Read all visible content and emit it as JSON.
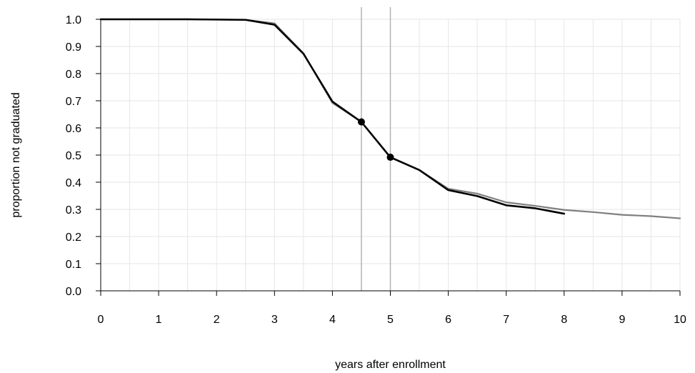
{
  "chart_data": {
    "type": "line",
    "xlabel": "years after enrollment",
    "ylabel": "proportion not graduated",
    "xlim": [
      0,
      10
    ],
    "ylim": [
      0,
      1
    ],
    "x_ticks": [
      "0",
      "1",
      "2",
      "3",
      "4",
      "5",
      "6",
      "7",
      "8",
      "9",
      "10"
    ],
    "y_ticks": [
      "0.0",
      "0.1",
      "0.2",
      "0.3",
      "0.4",
      "0.5",
      "0.6",
      "0.7",
      "0.8",
      "0.9",
      "1.0"
    ],
    "grid": true,
    "vertical_reference_lines": [
      4.5,
      5
    ],
    "series": [
      {
        "color": "#7f7f7f",
        "x": [
          0,
          0.5,
          1,
          1.5,
          2,
          2.5,
          3,
          3.5,
          4,
          4.5,
          5,
          5.5,
          6,
          6.5,
          7,
          7.5,
          8,
          8.5,
          9,
          9.5,
          10
        ],
        "y": [
          1.0,
          1.0,
          1.0,
          1.0,
          0.999,
          0.998,
          0.985,
          0.875,
          0.692,
          0.622,
          0.491,
          0.445,
          0.376,
          0.358,
          0.326,
          0.313,
          0.298,
          0.29,
          0.28,
          0.275,
          0.267
        ]
      },
      {
        "color": "#000000",
        "x": [
          0,
          0.5,
          1,
          1.5,
          2,
          2.5,
          3,
          3.5,
          4,
          4.5,
          5,
          5.5,
          6,
          6.5,
          7,
          7.5,
          8
        ],
        "y": [
          1.0,
          1.0,
          1.0,
          1.0,
          0.999,
          0.998,
          0.98,
          0.873,
          0.697,
          0.622,
          0.492,
          0.445,
          0.371,
          0.349,
          0.315,
          0.304,
          0.284
        ]
      }
    ],
    "highlight_points": [
      {
        "x": 4.5,
        "y": 0.622
      },
      {
        "x": 5,
        "y": 0.492
      }
    ]
  }
}
